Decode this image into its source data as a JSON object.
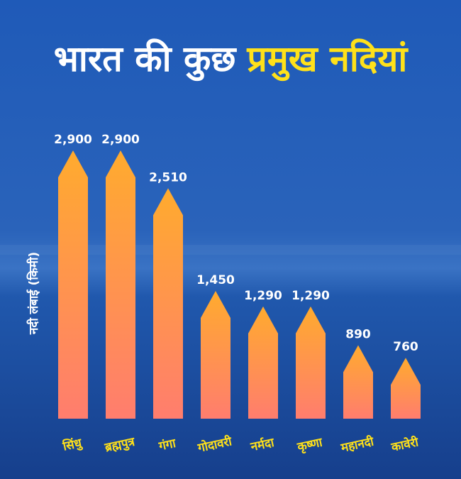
{
  "chart_data": {
    "type": "bar",
    "title_part1": "भारत की कुछ",
    "title_part2": "प्रमुख नदियां",
    "ylabel": "नदी लंबाई (किमी)",
    "xlabel": "",
    "categories": [
      "सिंधु",
      "ब्रह्मपुत्र",
      "गंगा",
      "गोदावरी",
      "नर्मदा",
      "कृष्णा",
      "महानदी",
      "कावेरी"
    ],
    "values": [
      2900,
      2900,
      2510,
      1450,
      1290,
      1290,
      890,
      760
    ],
    "value_labels": [
      "2,900",
      "2,900",
      "2,510",
      "1,450",
      "1,290",
      "1,290",
      "890",
      "760"
    ],
    "ylim": [
      0,
      3000
    ],
    "grid": false,
    "colors": {
      "title_white": "#ffffff",
      "title_accent": "#ffe11a",
      "bar_top": "#ffab2e",
      "bar_bottom": "#ff7d6e",
      "category_text": "#ffe11a",
      "value_text": "#ffffff",
      "bg_sky": "#1d4fa8",
      "bg_water": "#1a4b9e"
    }
  }
}
